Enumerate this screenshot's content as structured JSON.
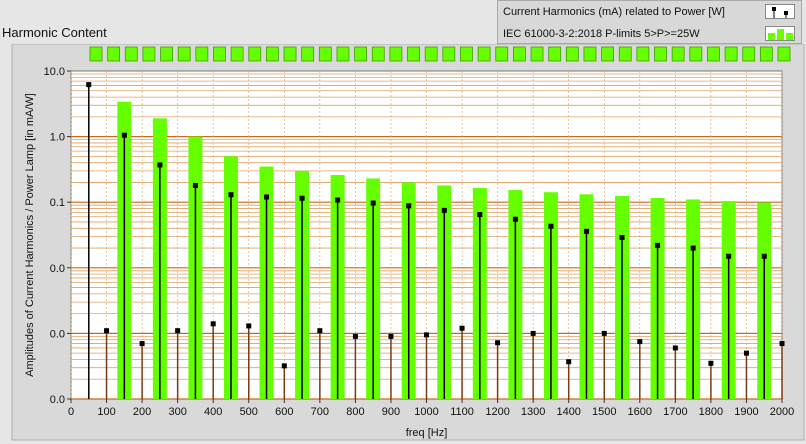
{
  "panel": {
    "title": "Harmonic Content"
  },
  "legend": {
    "items": [
      {
        "label": "Current Harmonics (mA) related to Power [W]",
        "icon": "black-stem-marker-icon",
        "color": "#000000"
      },
      {
        "label": "IEC 61000-3-2:2018 P-limits 5>P>=25W",
        "icon": "green-bar-icon",
        "color": "#66ff00"
      }
    ]
  },
  "colors": {
    "plot_bg": "#ffffff",
    "major_grid": "#cc6a1a",
    "minor_grid": "#e0a060",
    "limit_bar": "#66ff00",
    "harmonic_stem": "#000000",
    "top_strip": "#66ff00"
  },
  "chart_data": {
    "type": "bar",
    "xlabel": "freq [Hz]",
    "ylabel": "Amplitudes of Current Harmonics / Power Lamp [in mA/W]",
    "xlim": [
      0,
      2000
    ],
    "x_ticks": [
      "0",
      "100",
      "200",
      "300",
      "400",
      "500",
      "600",
      "700",
      "800",
      "900",
      "1000",
      "1100",
      "1200",
      "1300",
      "1400",
      "1500",
      "1600",
      "1700",
      "1800",
      "1900",
      "2000"
    ],
    "y_scale": "log",
    "ylim": [
      0.0001,
      10
    ],
    "y_ticks": [
      {
        "value": 10,
        "label": "10.0"
      },
      {
        "value": 1,
        "label": "1.0"
      },
      {
        "value": 0.1,
        "label": "0.1"
      },
      {
        "value": 0.01,
        "label": "0.0"
      },
      {
        "value": 0.001,
        "label": "0.0"
      },
      {
        "value": 0.0001,
        "label": "0.0"
      }
    ],
    "grid": true,
    "series": [
      {
        "name": "IEC 61000-3-2:2018 P-limits 5>P>=25W",
        "kind": "bar",
        "x": [
          150,
          250,
          350,
          450,
          550,
          650,
          750,
          850,
          950,
          1050,
          1150,
          1250,
          1350,
          1450,
          1550,
          1650,
          1750,
          1850,
          1950
        ],
        "values": [
          3.4,
          1.9,
          1.0,
          0.5,
          0.35,
          0.3,
          0.26,
          0.23,
          0.2,
          0.18,
          0.166,
          0.153,
          0.142,
          0.132,
          0.124,
          0.116,
          0.11,
          0.104,
          0.099
        ]
      },
      {
        "name": "Current Harmonics (mA) related to Power [W]",
        "kind": "stem",
        "x": [
          50,
          100,
          150,
          200,
          250,
          300,
          350,
          400,
          450,
          500,
          550,
          600,
          650,
          700,
          750,
          800,
          850,
          900,
          950,
          1000,
          1050,
          1100,
          1150,
          1200,
          1250,
          1300,
          1350,
          1400,
          1450,
          1500,
          1550,
          1600,
          1650,
          1700,
          1750,
          1800,
          1850,
          1900,
          1950,
          2000
        ],
        "values": [
          6.2,
          0.0011,
          1.05,
          0.0007,
          0.37,
          0.0011,
          0.18,
          0.0014,
          0.13,
          0.0013,
          0.12,
          0.00032,
          0.115,
          0.0011,
          0.108,
          0.0009,
          0.097,
          0.0009,
          0.088,
          0.00095,
          0.075,
          0.0012,
          0.065,
          0.00072,
          0.055,
          0.001,
          0.043,
          0.00037,
          0.036,
          0.001,
          0.029,
          0.00075,
          0.022,
          0.0006,
          0.02,
          0.00035,
          0.015,
          0.0005,
          0.015,
          0.0007
        ]
      }
    ]
  }
}
